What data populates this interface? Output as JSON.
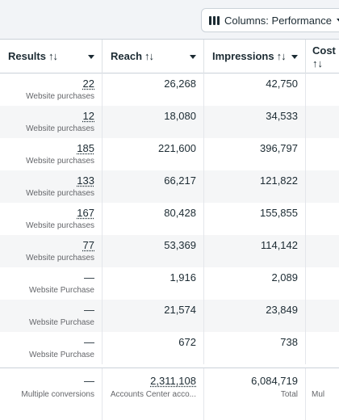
{
  "toolbar": {
    "columns_label": "Columns: Performance"
  },
  "table": {
    "headers": [
      {
        "label": "Results",
        "sort": "↑↓"
      },
      {
        "label": "Reach",
        "sort": "↑↓"
      },
      {
        "label": "Impressions",
        "sort": "↑↓"
      },
      {
        "label": "Cost p",
        "sort": "↑↓"
      }
    ],
    "rows": [
      {
        "results": "22",
        "results_sub": "Website purchases",
        "reach": "26,268",
        "impressions": "42,750"
      },
      {
        "results": "12",
        "results_sub": "Website purchases",
        "reach": "18,080",
        "impressions": "34,533"
      },
      {
        "results": "185",
        "results_sub": "Website purchases",
        "reach": "221,600",
        "impressions": "396,797"
      },
      {
        "results": "133",
        "results_sub": "Website purchases",
        "reach": "66,217",
        "impressions": "121,822"
      },
      {
        "results": "167",
        "results_sub": "Website purchases",
        "reach": "80,428",
        "impressions": "155,855"
      },
      {
        "results": "77",
        "results_sub": "Website purchases",
        "reach": "53,369",
        "impressions": "114,142"
      },
      {
        "results": "—",
        "results_sub": "Website Purchase",
        "reach": "1,916",
        "impressions": "2,089"
      },
      {
        "results": "—",
        "results_sub": "Website Purchase",
        "reach": "21,574",
        "impressions": "23,849"
      },
      {
        "results": "—",
        "results_sub": "Website Purchase",
        "reach": "672",
        "impressions": "738"
      }
    ],
    "totals": {
      "results": "—",
      "results_sub": "Multiple conversions",
      "reach": "2,311,108",
      "reach_sub": "Accounts Center acco...",
      "impressions": "6,084,719",
      "impressions_sub": "Total",
      "cost_sub": "Mul"
    }
  }
}
